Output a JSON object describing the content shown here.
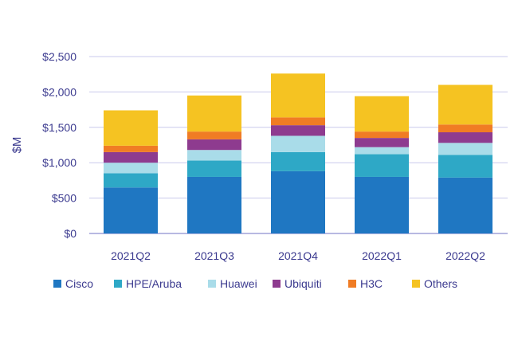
{
  "chart_data": {
    "type": "bar",
    "stacked": true,
    "title": "",
    "xlabel": "",
    "ylabel": "$M",
    "ylim": [
      0,
      2500
    ],
    "yticks": [
      0,
      500,
      1000,
      1500,
      2000,
      2500
    ],
    "ytick_labels": [
      "$0",
      "$500",
      "$1,000",
      "$1,500",
      "$2,000",
      "$2,500"
    ],
    "grid": true,
    "legend_position": "bottom",
    "categories": [
      "2021Q2",
      "2021Q3",
      "2021Q4",
      "2022Q1",
      "2022Q2"
    ],
    "series": [
      {
        "name": "Cisco",
        "color": "#1f77c2",
        "values": [
          650,
          800,
          880,
          800,
          790
        ]
      },
      {
        "name": "HPE/Aruba",
        "color": "#2ea8c6",
        "values": [
          200,
          230,
          270,
          320,
          320
        ]
      },
      {
        "name": "Huawei",
        "color": "#a9dce9",
        "values": [
          150,
          150,
          230,
          100,
          170
        ]
      },
      {
        "name": "Ubiquiti",
        "color": "#8e3b8f",
        "values": [
          150,
          150,
          150,
          130,
          150
        ]
      },
      {
        "name": "H3C",
        "color": "#f07c24",
        "values": [
          90,
          110,
          110,
          90,
          110
        ]
      },
      {
        "name": "Others",
        "color": "#f5c322",
        "values": [
          500,
          510,
          620,
          500,
          560
        ]
      }
    ]
  }
}
